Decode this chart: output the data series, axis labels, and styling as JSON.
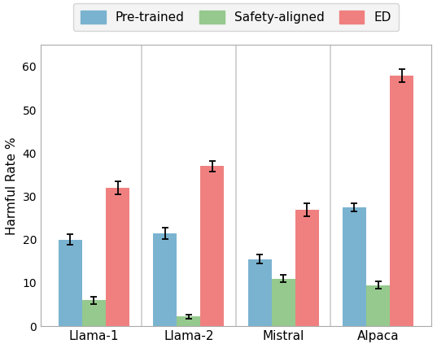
{
  "categories": [
    "Llama-1",
    "Llama-2",
    "Mistral",
    "Alpaca"
  ],
  "series": {
    "Pre-trained": {
      "values": [
        20.0,
        21.5,
        15.5,
        27.5
      ],
      "errors": [
        1.2,
        1.3,
        1.0,
        1.0
      ],
      "color": "#7ab3d0"
    },
    "Safety-aligned": {
      "values": [
        6.0,
        2.2,
        11.0,
        9.5
      ],
      "errors": [
        0.8,
        0.5,
        0.9,
        0.8
      ],
      "color": "#95c98d"
    },
    "ED": {
      "values": [
        32.0,
        37.0,
        27.0,
        58.0
      ],
      "errors": [
        1.5,
        1.2,
        1.5,
        1.5
      ],
      "color": "#f08080"
    }
  },
  "legend_labels": [
    "Pre-trained",
    "Safety-aligned",
    "ED"
  ],
  "ylabel": "Harmful Rate %",
  "ylim": [
    0,
    65
  ],
  "yticks": [
    0,
    10,
    20,
    30,
    40,
    50,
    60
  ],
  "bar_width": 0.25,
  "background_color": "#ffffff",
  "face_color": "#ffffff",
  "separator_color": "#cccccc",
  "legend_face_color": "#f2f2f2",
  "legend_edge_color": "#cccccc"
}
